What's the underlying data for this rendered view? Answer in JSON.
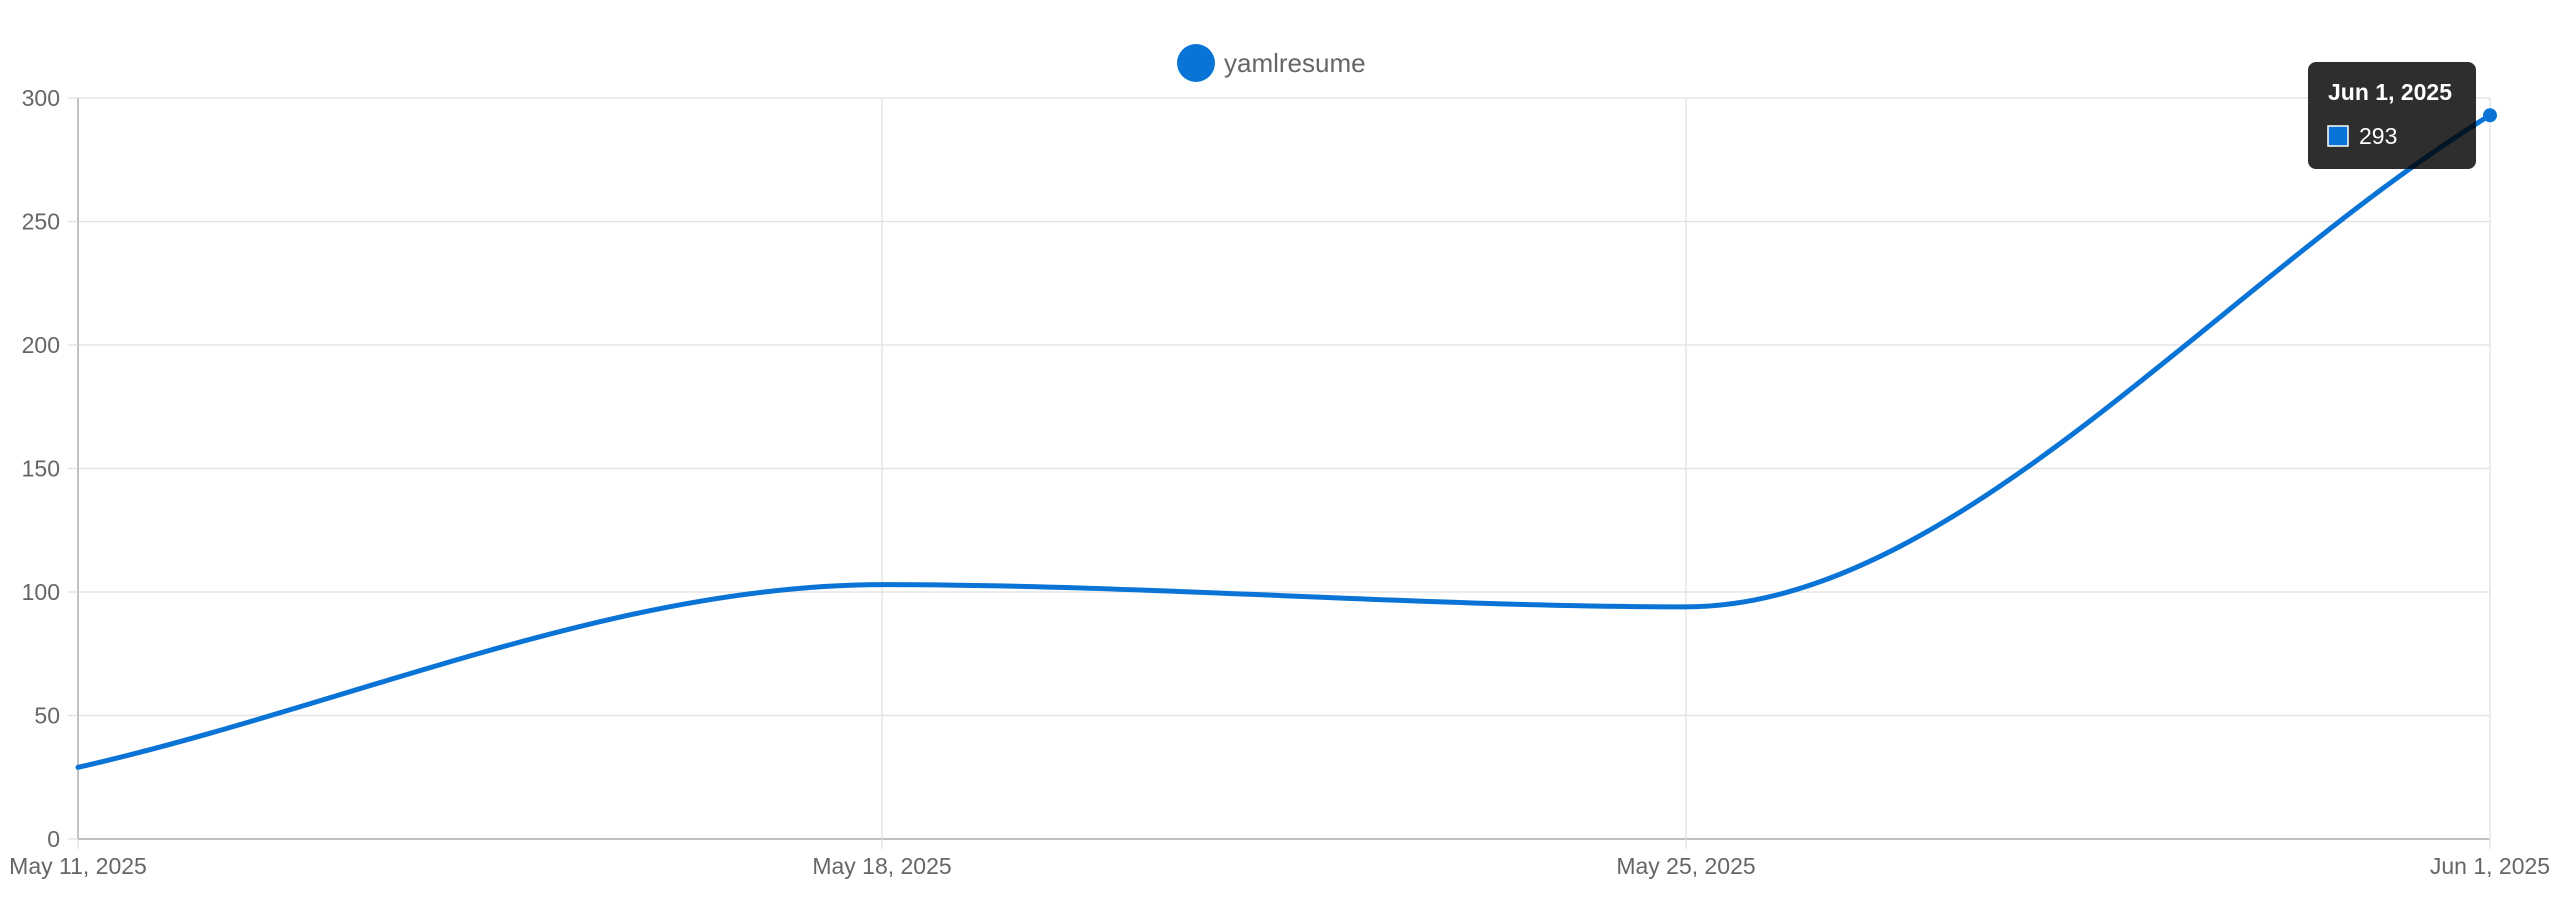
{
  "chart_data": {
    "type": "line",
    "x": [
      "May 11, 2025",
      "May 18, 2025",
      "May 25, 2025",
      "Jun 1, 2025"
    ],
    "x_tick_labels": [
      "May 11, 2025",
      "May 18, 2025",
      "May 25, 2025",
      "Jun 1, 2025"
    ],
    "series": [
      {
        "name": "yamlresume",
        "values": [
          29,
          103,
          94,
          293
        ]
      }
    ],
    "ylim": [
      0,
      300
    ],
    "y_ticks": [
      0,
      50,
      100,
      150,
      200,
      250,
      300
    ],
    "grid": true,
    "legend_position": "top-center",
    "title": "",
    "xlabel": "",
    "ylabel": "",
    "series_color": "#0a74d6",
    "grid_color": "#e0e0e0",
    "tooltip": {
      "title": "Jun 1, 2025",
      "value": "293"
    }
  }
}
